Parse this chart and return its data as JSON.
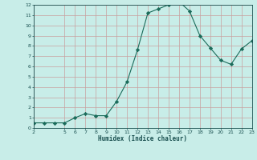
{
  "x": [
    2,
    3,
    4,
    5,
    6,
    7,
    8,
    9,
    10,
    11,
    12,
    13,
    14,
    15,
    16,
    17,
    18,
    19,
    20,
    21,
    22,
    23
  ],
  "y": [
    0.5,
    0.5,
    0.5,
    0.5,
    1.0,
    1.4,
    1.2,
    1.2,
    2.6,
    4.5,
    7.6,
    11.2,
    11.6,
    12.0,
    12.3,
    11.4,
    9.0,
    7.8,
    6.6,
    6.2,
    7.7,
    8.5
  ],
  "line_color": "#1a6b5a",
  "marker": "D",
  "marker_size": 2.2,
  "bg_color": "#c8ede8",
  "grid_color": "#c8a0a0",
  "xlabel": "Humidex (Indice chaleur)",
  "xlabel_color": "#1a5050",
  "tick_color": "#1a5050",
  "xlim": [
    2,
    23
  ],
  "ylim": [
    0,
    12
  ],
  "yticks": [
    0,
    1,
    2,
    3,
    4,
    5,
    6,
    7,
    8,
    9,
    10,
    11,
    12
  ],
  "xticks": [
    2,
    5,
    6,
    7,
    8,
    9,
    10,
    11,
    12,
    13,
    14,
    15,
    16,
    17,
    18,
    19,
    20,
    21,
    22,
    23
  ]
}
